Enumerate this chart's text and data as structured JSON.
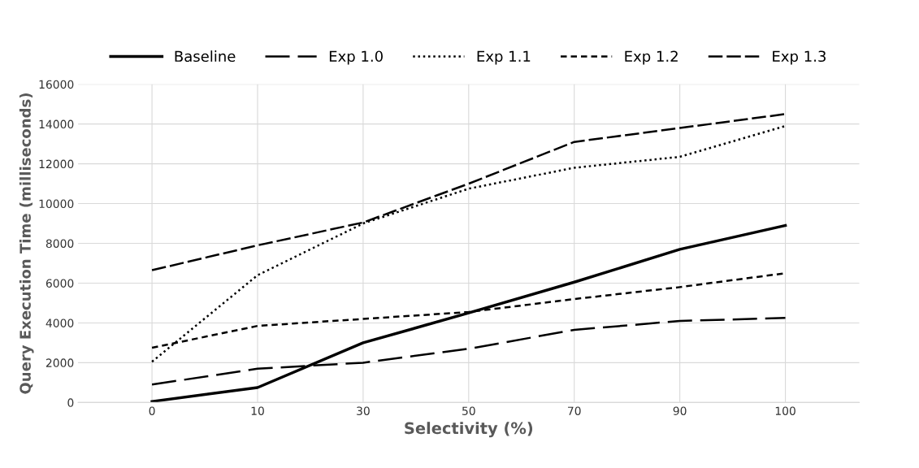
{
  "chart_data": {
    "type": "line",
    "xlabel": "Selectivity (%)",
    "ylabel": "Query Execution Time (milliseconds)",
    "categories": [
      "0",
      "10",
      "30",
      "50",
      "70",
      "90",
      "100"
    ],
    "series": [
      {
        "name": "Baseline",
        "color": "#000000",
        "line_style": "solid",
        "values": [
          50,
          750,
          3000,
          4500,
          6050,
          7700,
          8900
        ]
      },
      {
        "name": "Exp 1.0",
        "color": "#000000",
        "line_style": "dashed",
        "values": [
          900,
          1700,
          2000,
          2700,
          3650,
          4100,
          4250
        ]
      },
      {
        "name": "Exp 1.1",
        "color": "#000000",
        "line_style": "dotted",
        "values": [
          2050,
          6400,
          9000,
          10750,
          11800,
          12350,
          13900
        ]
      },
      {
        "name": "Exp 1.2",
        "color": "#000000",
        "line_style": "dashed",
        "values": [
          2750,
          3850,
          4200,
          4550,
          5200,
          5800,
          6500
        ]
      },
      {
        "name": "Exp 1.3",
        "color": "#000000",
        "line_style": "dashed",
        "values": [
          6650,
          7900,
          9050,
          11000,
          13100,
          13800,
          14500
        ]
      }
    ],
    "ylim": [
      0,
      16000
    ],
    "yticks": [
      0,
      2000,
      4000,
      6000,
      8000,
      10000,
      12000,
      14000,
      16000
    ],
    "grid": true,
    "legend": "top",
    "marker": "none"
  }
}
